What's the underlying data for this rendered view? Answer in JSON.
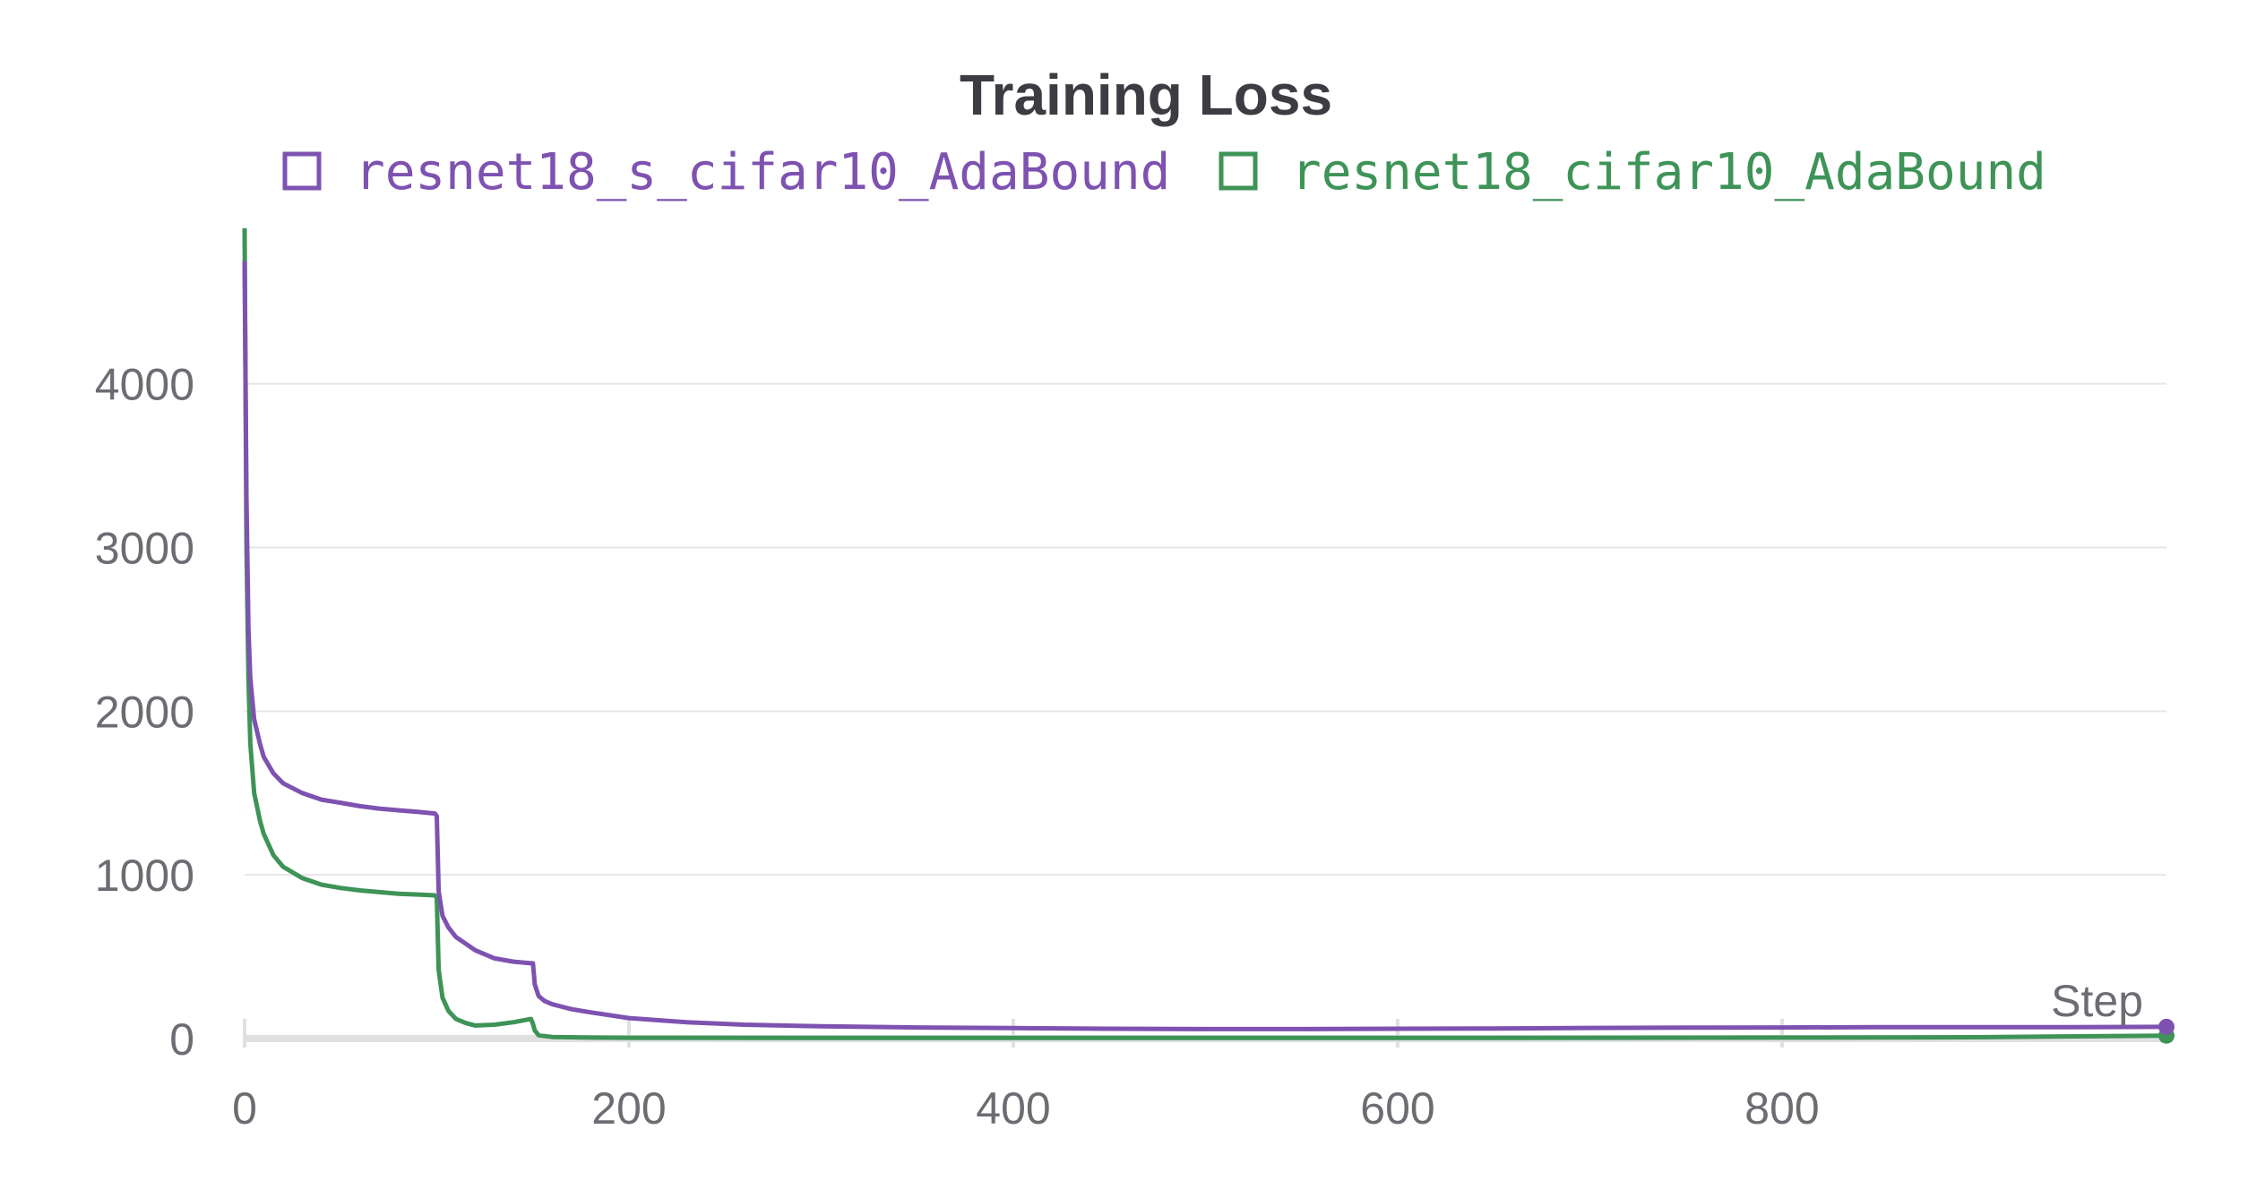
{
  "chart_data": {
    "type": "line",
    "title": "Training Loss",
    "xlabel": "Step",
    "ylabel": "",
    "xlim": [
      0,
      1000
    ],
    "ylim": [
      0,
      4950
    ],
    "x_ticks": [
      0,
      200,
      400,
      600,
      800
    ],
    "y_ticks": [
      0,
      1000,
      2000,
      3000,
      4000
    ],
    "grid": true,
    "legend_position": "top",
    "series": [
      {
        "name": "resnet18_s_cifar10_AdaBound",
        "color": "#7e52b0",
        "x": [
          0,
          1,
          2,
          3,
          5,
          8,
          10,
          15,
          20,
          30,
          40,
          50,
          60,
          70,
          80,
          90,
          99,
          100,
          101,
          103,
          106,
          110,
          120,
          130,
          140,
          149,
          150,
          151,
          153,
          156,
          160,
          170,
          180,
          200,
          230,
          260,
          300,
          350,
          400,
          450,
          500,
          550,
          600,
          650,
          700,
          750,
          800,
          850,
          900,
          950,
          1000
        ],
        "y": [
          4750,
          3300,
          2500,
          2200,
          1950,
          1800,
          1720,
          1620,
          1560,
          1500,
          1460,
          1440,
          1420,
          1405,
          1395,
          1385,
          1375,
          1360,
          900,
          750,
          680,
          620,
          540,
          490,
          470,
          460,
          460,
          330,
          260,
          230,
          210,
          180,
          160,
          125,
          100,
          85,
          75,
          68,
          64,
          60,
          58,
          58,
          60,
          62,
          65,
          67,
          68,
          70,
          70,
          70,
          72
        ]
      },
      {
        "name": "resnet18_cifar10_AdaBound",
        "color": "#3e9357",
        "x": [
          0,
          1,
          2,
          3,
          5,
          8,
          10,
          15,
          20,
          30,
          40,
          50,
          60,
          70,
          80,
          90,
          99,
          100,
          101,
          103,
          106,
          110,
          115,
          120,
          130,
          140,
          149,
          150,
          151,
          153,
          160,
          180,
          200,
          300,
          400,
          500,
          600,
          700,
          800,
          900,
          1000
        ],
        "y": [
          4950,
          3000,
          2200,
          1800,
          1500,
          1330,
          1250,
          1120,
          1050,
          980,
          940,
          920,
          905,
          895,
          885,
          880,
          875,
          860,
          420,
          250,
          170,
          120,
          95,
          80,
          85,
          100,
          120,
          90,
          50,
          20,
          10,
          6,
          5,
          4,
          4,
          4,
          4,
          5,
          6,
          8,
          18
        ]
      }
    ]
  }
}
